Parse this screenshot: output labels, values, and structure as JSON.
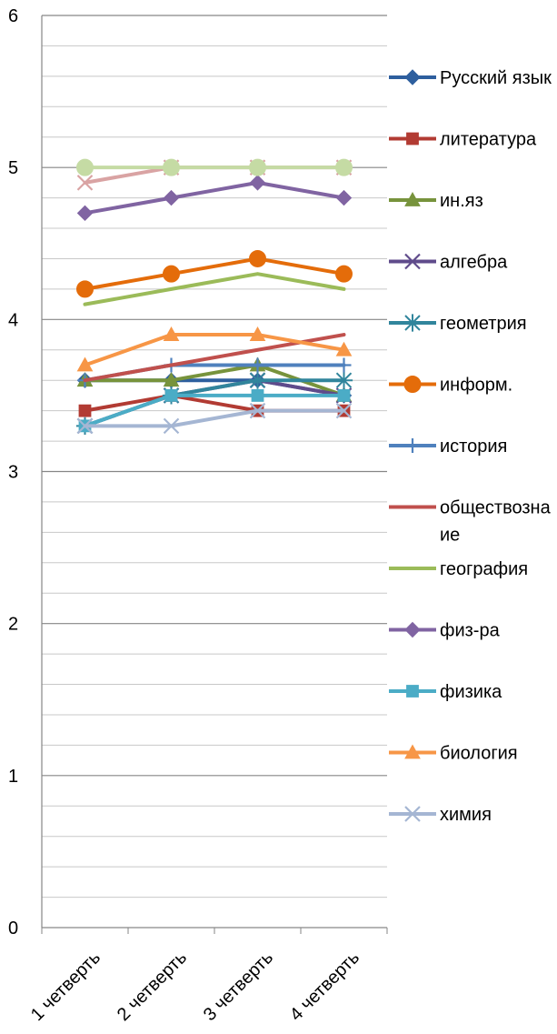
{
  "chart_data": {
    "type": "line",
    "title": "",
    "xlabel": "",
    "ylabel": "",
    "categories": [
      "1 четверть",
      "2 четверть",
      "3 четверть",
      "4 четверть"
    ],
    "ylim": [
      0,
      6
    ],
    "yticks": [
      "0",
      "1",
      "2",
      "3",
      "4",
      "5",
      "6"
    ],
    "minor_grid_step": 0.2,
    "grid": true,
    "legend_position": "right",
    "series": [
      {
        "name": "Русский язык",
        "legend_lines": [
          "Русский язык"
        ],
        "color": "#2E5F9E",
        "marker": "diamond",
        "values": [
          3.6,
          3.6,
          3.6,
          3.5
        ]
      },
      {
        "name": "литература",
        "legend_lines": [
          "литература"
        ],
        "color": "#B23B33",
        "marker": "square",
        "values": [
          3.4,
          3.5,
          3.4,
          3.4
        ]
      },
      {
        "name": "ин.яз",
        "legend_lines": [
          "ин.яз"
        ],
        "color": "#77933C",
        "marker": "triangle",
        "values": [
          3.6,
          3.6,
          3.7,
          3.5
        ]
      },
      {
        "name": "алгебра",
        "legend_lines": [
          "алгебра"
        ],
        "color": "#5F4B8B",
        "marker": "x",
        "values": [
          3.3,
          3.5,
          3.6,
          3.5
        ]
      },
      {
        "name": "геометрия",
        "legend_lines": [
          "геометрия"
        ],
        "color": "#31859C",
        "marker": "star",
        "values": [
          3.3,
          3.5,
          3.6,
          3.6
        ]
      },
      {
        "name": "информ.",
        "legend_lines": [
          "информ."
        ],
        "color": "#E46C0A",
        "marker": "circle",
        "values": [
          4.2,
          4.3,
          4.4,
          4.3
        ]
      },
      {
        "name": "история",
        "legend_lines": [
          "история"
        ],
        "color": "#4F81BD",
        "marker": "plus",
        "values": [
          3.6,
          3.7,
          3.7,
          3.7
        ]
      },
      {
        "name": "обществознание",
        "legend_lines": [
          "обществозна",
          "ие"
        ],
        "color": "#C0504D",
        "marker": "none",
        "values": [
          3.6,
          3.7,
          3.8,
          3.9
        ]
      },
      {
        "name": "география",
        "legend_lines": [
          "география"
        ],
        "color": "#9BBB59",
        "marker": "none",
        "values": [
          4.1,
          4.2,
          4.3,
          4.2
        ]
      },
      {
        "name": "физ-ра",
        "legend_lines": [
          "физ-ра"
        ],
        "color": "#8064A2",
        "marker": "diamond",
        "values": [
          4.7,
          4.8,
          4.9,
          4.8
        ]
      },
      {
        "name": "физика",
        "legend_lines": [
          "физика"
        ],
        "color": "#4BACC6",
        "marker": "square",
        "values": [
          3.3,
          3.5,
          3.5,
          3.5
        ]
      },
      {
        "name": "биология",
        "legend_lines": [
          "биология"
        ],
        "color": "#F79646",
        "marker": "triangle",
        "values": [
          3.7,
          3.9,
          3.9,
          3.8
        ]
      },
      {
        "name": "химия",
        "legend_lines": [
          "химия"
        ],
        "color": "#A5B6D3",
        "marker": "x",
        "values": [
          3.3,
          3.3,
          3.4,
          3.4
        ]
      },
      {
        "name": "",
        "legend_lines": [],
        "color": "#D9A3A3",
        "marker": "x",
        "values": [
          4.9,
          5.0,
          5.0,
          5.0
        ]
      },
      {
        "name": "",
        "legend_lines": [],
        "color": "#C5DBA4",
        "marker": "circle",
        "values": [
          5.0,
          5.0,
          5.0,
          5.0
        ]
      }
    ]
  }
}
